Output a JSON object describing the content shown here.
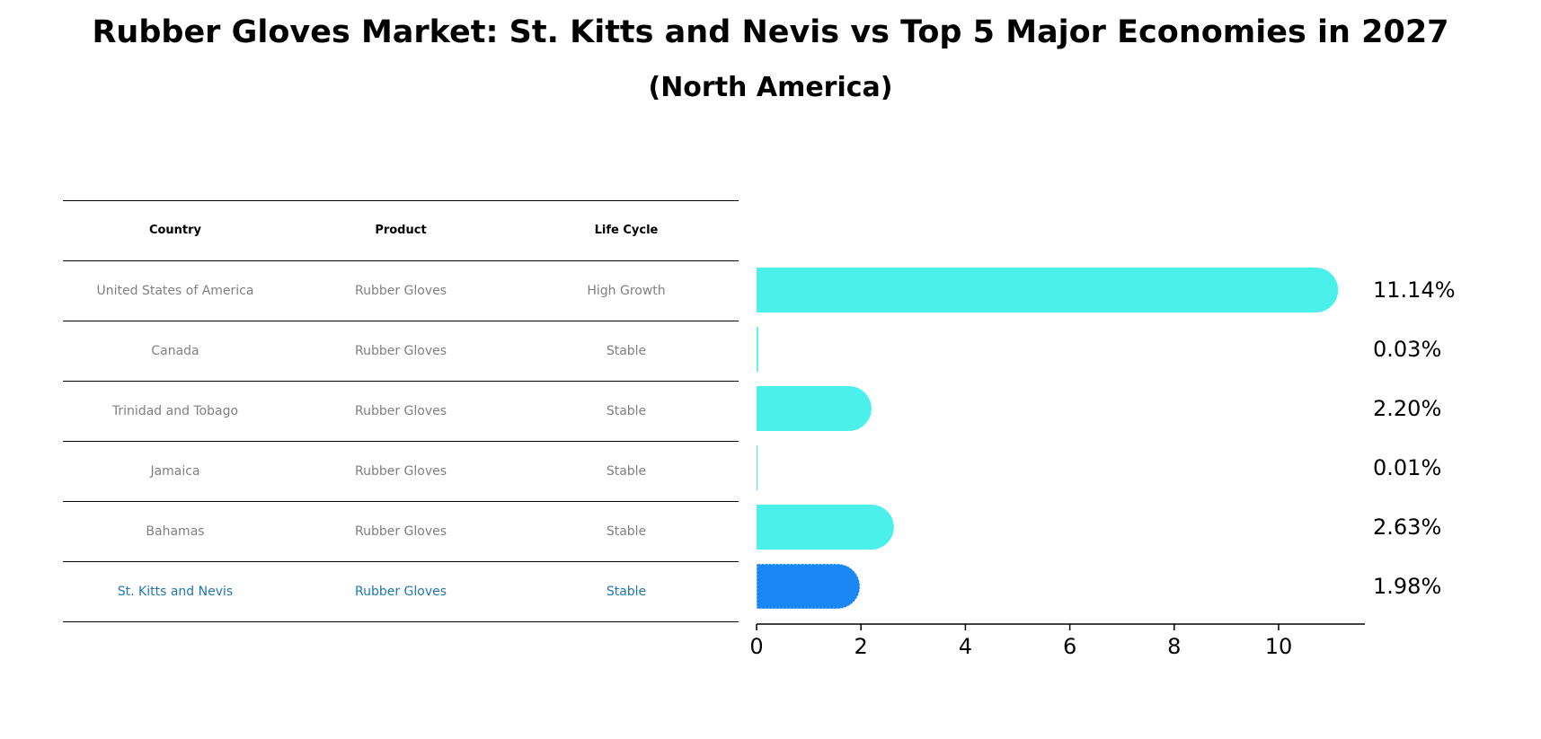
{
  "title": "Rubber Gloves Market: St. Kitts and Nevis vs Top 5 Major Economies in 2027",
  "subtitle": "(North America)",
  "table": {
    "headers": [
      "Country",
      "Product",
      "Life Cycle"
    ],
    "rows": [
      [
        "United States of America",
        "Rubber Gloves",
        "High Growth"
      ],
      [
        "Canada",
        "Rubber Gloves",
        "Stable"
      ],
      [
        "Trinidad and Tobago",
        "Rubber Gloves",
        "Stable"
      ],
      [
        "Jamaica",
        "Rubber Gloves",
        "Stable"
      ],
      [
        "Bahamas",
        "Rubber Gloves",
        "Stable"
      ],
      [
        "St. Kitts and Nevis",
        "Rubber Gloves",
        "Stable"
      ]
    ]
  },
  "colors": {
    "bar": "#4cf0ea",
    "highlight_bar": "#1a87f5",
    "highlight_text": "#1f77b4",
    "row_text": "#808080"
  },
  "chart_data": {
    "type": "bar",
    "orientation": "horizontal",
    "title": "Rubber Gloves Market: St. Kitts and Nevis vs Top 5 Major Economies in 2027",
    "subtitle": "(North America)",
    "categories": [
      "United States of America",
      "Canada",
      "Trinidad and Tobago",
      "Jamaica",
      "Bahamas",
      "St. Kitts and Nevis"
    ],
    "values": [
      11.14,
      0.03,
      2.2,
      0.01,
      2.63,
      1.98
    ],
    "value_labels": [
      "11.14%",
      "0.03%",
      "2.20%",
      "0.01%",
      "2.63%",
      "1.98%"
    ],
    "highlight": "St. Kitts and Nevis",
    "xlim": [
      0,
      11.7
    ],
    "xticks": [
      0,
      2,
      4,
      6,
      8,
      10
    ],
    "xtick_labels": [
      "0",
      "2",
      "4",
      "6",
      "8",
      "10"
    ],
    "xlabel": "",
    "ylabel": ""
  }
}
